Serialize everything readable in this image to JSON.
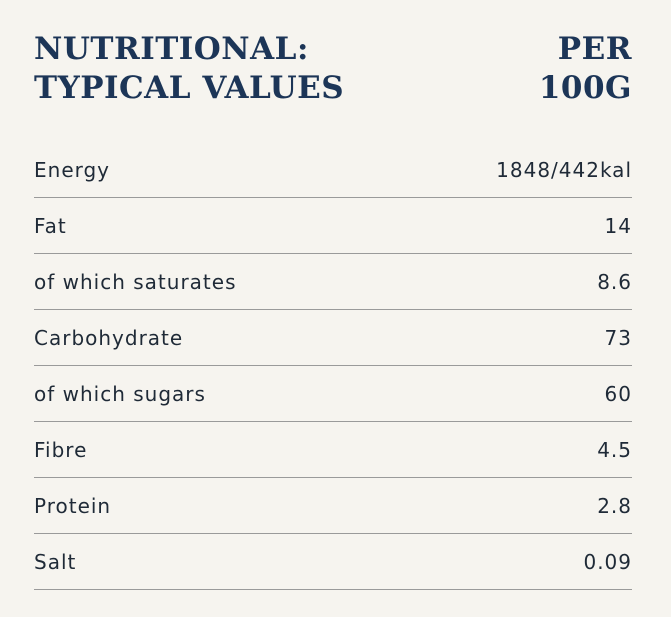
{
  "header": {
    "title_line1": "NUTRITIONAL:",
    "title_line2": "TYPICAL VALUES",
    "per_line1": "PER",
    "per_line2": "100G"
  },
  "rows": [
    {
      "label": "Energy",
      "value": "1848/442kal"
    },
    {
      "label": "Fat",
      "value": "14"
    },
    {
      "label": "of which saturates",
      "value": "8.6"
    },
    {
      "label": "Carbohydrate",
      "value": "73"
    },
    {
      "label": "of which sugars",
      "value": "60"
    },
    {
      "label": "Fibre",
      "value": "4.5"
    },
    {
      "label": "Protein",
      "value": "2.8"
    },
    {
      "label": "Salt",
      "value": "0.09"
    }
  ],
  "colors": {
    "heading": "#1c3557",
    "text": "#1f2a37",
    "background": "#f6f4ef",
    "divider": "#9a9a9a"
  }
}
